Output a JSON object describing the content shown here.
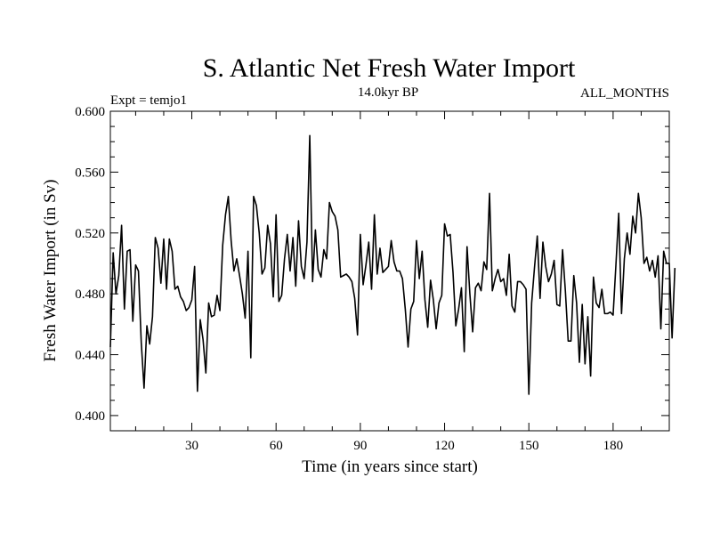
{
  "chart_data": {
    "type": "line",
    "title": "S. Atlantic Net Fresh Water Import",
    "subtitle_center": "14.0kyr BP",
    "label_left": "Expt = temjo1",
    "label_right": "ALL_MONTHS",
    "xlabel": "Time (in years since start)",
    "ylabel": "Fresh Water Import (in Sv)",
    "xlim": [
      1,
      200
    ],
    "ylim": [
      0.39,
      0.6
    ],
    "xticks": [
      30,
      60,
      90,
      120,
      150,
      180
    ],
    "yticks": [
      0.4,
      0.44,
      0.48,
      0.52,
      0.56,
      0.6
    ],
    "ytick_labels": [
      "0.400",
      "0.440",
      "0.480",
      "0.520",
      "0.560",
      "0.600"
    ],
    "series": [
      {
        "name": "Fresh Water Import",
        "color": "#000000",
        "x_start": 1,
        "x_step": 1,
        "values": [
          0.445,
          0.507,
          0.48,
          0.492,
          0.525,
          0.47,
          0.508,
          0.509,
          0.462,
          0.499,
          0.495,
          0.448,
          0.418,
          0.459,
          0.447,
          0.465,
          0.517,
          0.51,
          0.487,
          0.516,
          0.483,
          0.516,
          0.508,
          0.483,
          0.485,
          0.478,
          0.475,
          0.469,
          0.471,
          0.476,
          0.498,
          0.416,
          0.463,
          0.45,
          0.428,
          0.474,
          0.465,
          0.466,
          0.479,
          0.469,
          0.512,
          0.532,
          0.544,
          0.515,
          0.495,
          0.503,
          0.492,
          0.48,
          0.464,
          0.508,
          0.438,
          0.544,
          0.538,
          0.52,
          0.493,
          0.497,
          0.525,
          0.513,
          0.478,
          0.532,
          0.475,
          0.479,
          0.503,
          0.519,
          0.495,
          0.517,
          0.485,
          0.528,
          0.498,
          0.49,
          0.514,
          0.584,
          0.488,
          0.522,
          0.496,
          0.491,
          0.509,
          0.503,
          0.54,
          0.534,
          0.531,
          0.522,
          0.491,
          0.492,
          0.493,
          0.491,
          0.488,
          0.477,
          0.453,
          0.519,
          0.486,
          0.499,
          0.514,
          0.483,
          0.532,
          0.493,
          0.51,
          0.494,
          0.496,
          0.498,
          0.515,
          0.501,
          0.495,
          0.495,
          0.49,
          0.47,
          0.445,
          0.47,
          0.475,
          0.515,
          0.49,
          0.508,
          0.476,
          0.458,
          0.489,
          0.476,
          0.457,
          0.474,
          0.479,
          0.526,
          0.518,
          0.519,
          0.494,
          0.459,
          0.47,
          0.484,
          0.442,
          0.511,
          0.48,
          0.455,
          0.484,
          0.487,
          0.482,
          0.501,
          0.496,
          0.546,
          0.482,
          0.49,
          0.496,
          0.488,
          0.49,
          0.479,
          0.506,
          0.472,
          0.468,
          0.488,
          0.488,
          0.486,
          0.483,
          0.414,
          0.474,
          0.497,
          0.518,
          0.477,
          0.514,
          0.498,
          0.488,
          0.493,
          0.502,
          0.473,
          0.472,
          0.509,
          0.482,
          0.449,
          0.449,
          0.492,
          0.474,
          0.435,
          0.473,
          0.434,
          0.465,
          0.426,
          0.491,
          0.474,
          0.471,
          0.483,
          0.467,
          0.467,
          0.468,
          0.466,
          0.499,
          0.533,
          0.467,
          0.503,
          0.52,
          0.506,
          0.531,
          0.52,
          0.546,
          0.53,
          0.5,
          0.504,
          0.495,
          0.502,
          0.491,
          0.505,
          0.457,
          0.508,
          0.5,
          0.5,
          0.451,
          0.497
        ]
      }
    ]
  }
}
